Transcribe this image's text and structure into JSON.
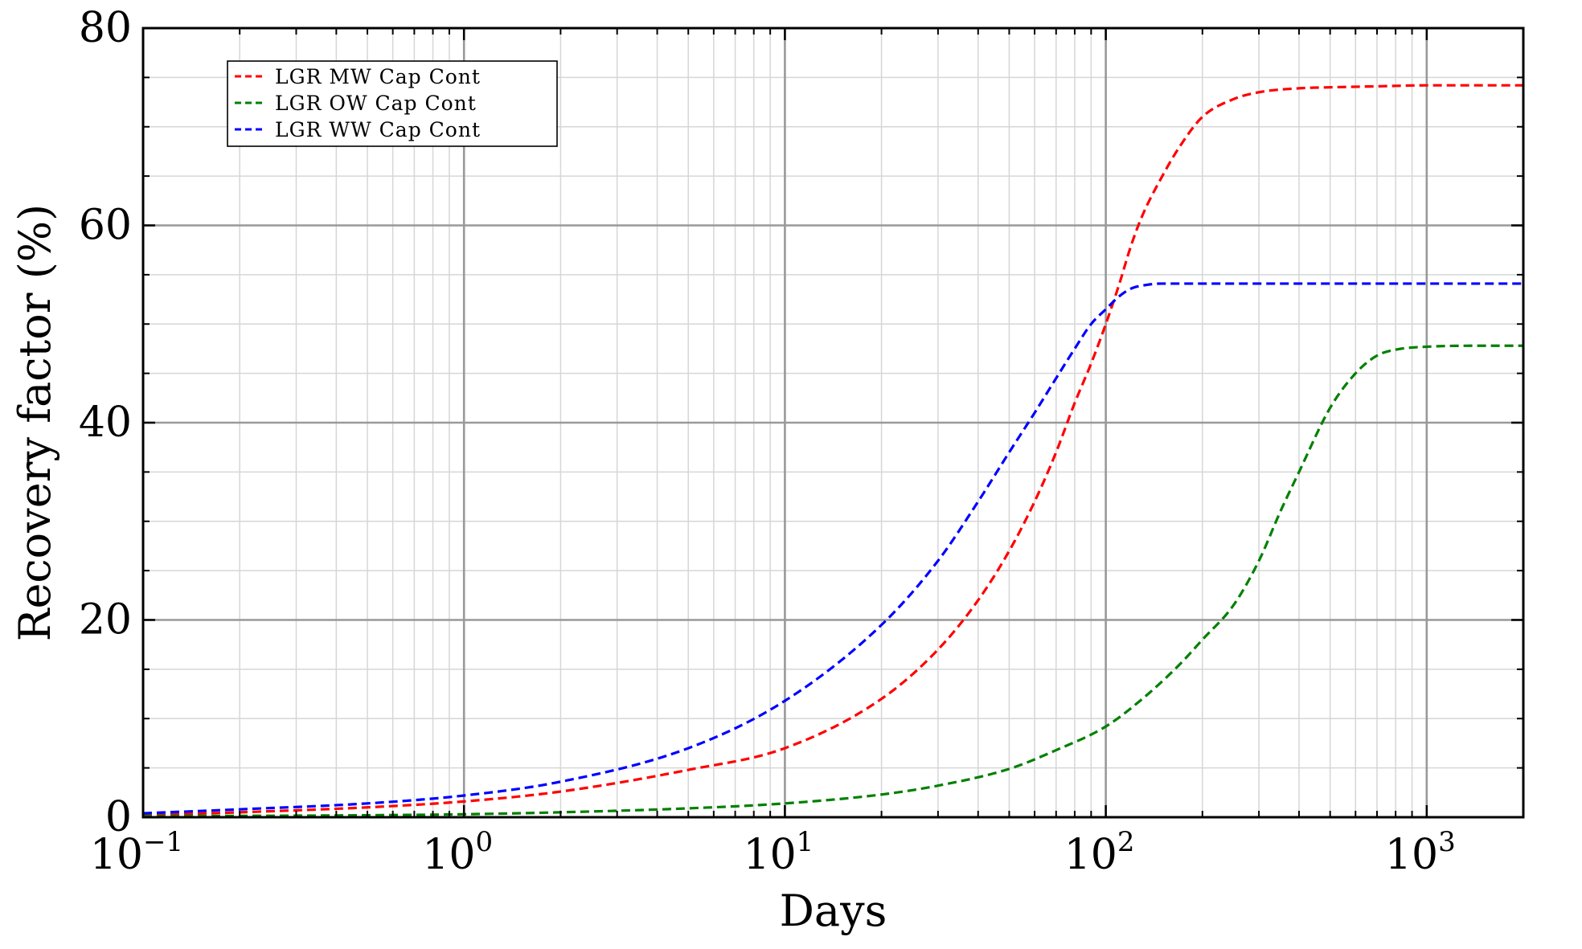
{
  "chart_data": {
    "type": "line",
    "xlabel": "Days",
    "ylabel": "Recovery factor (%)",
    "xscale": "log",
    "xlim": [
      0.1,
      2000
    ],
    "ylim": [
      0,
      80
    ],
    "x_ticks": [
      {
        "value": 0.1,
        "base": "10",
        "exp": "−1"
      },
      {
        "value": 1,
        "base": "10",
        "exp": "0"
      },
      {
        "value": 10,
        "base": "10",
        "exp": "1"
      },
      {
        "value": 100,
        "base": "10",
        "exp": "2"
      },
      {
        "value": 1000,
        "base": "10",
        "exp": "3"
      }
    ],
    "y_ticks": [
      {
        "value": 0,
        "label": "0"
      },
      {
        "value": 20,
        "label": "20"
      },
      {
        "value": 40,
        "label": "40"
      },
      {
        "value": 60,
        "label": "60"
      },
      {
        "value": 80,
        "label": "80"
      }
    ],
    "grid": true,
    "legend": "top-left",
    "series": [
      {
        "name": "LGR MW Cap Cont",
        "color": "#ff0000",
        "style": "dashed",
        "x": [
          0.1,
          0.2,
          0.5,
          1,
          2,
          5,
          10,
          20,
          30,
          40,
          50,
          60,
          70,
          80,
          90,
          100,
          110,
          120,
          130,
          150,
          170,
          200,
          250,
          300,
          400,
          500,
          700,
          1000,
          1500,
          2000
        ],
        "y": [
          0.2,
          0.5,
          1.0,
          1.6,
          2.6,
          4.8,
          7.0,
          12.0,
          17.0,
          22.0,
          27.0,
          32.0,
          37.0,
          42.0,
          46.0,
          50.0,
          54.0,
          58.0,
          61.0,
          65.0,
          68.0,
          71.0,
          72.8,
          73.5,
          73.9,
          74.0,
          74.1,
          74.2,
          74.2,
          74.2
        ]
      },
      {
        "name": "LGR OW Cap Cont",
        "color": "#008000",
        "style": "dashed",
        "x": [
          0.1,
          0.5,
          1,
          2,
          5,
          10,
          20,
          30,
          50,
          70,
          100,
          130,
          170,
          200,
          250,
          300,
          350,
          400,
          500,
          600,
          700,
          800,
          1000,
          1500,
          2000
        ],
        "y": [
          0.1,
          0.2,
          0.3,
          0.5,
          0.9,
          1.4,
          2.3,
          3.2,
          4.9,
          6.8,
          9.2,
          12.0,
          15.5,
          18.0,
          21.5,
          26.0,
          31.0,
          35.0,
          41.5,
          45.0,
          46.8,
          47.4,
          47.7,
          47.8,
          47.8
        ]
      },
      {
        "name": "LGR WW Cap Cont",
        "color": "#0000ff",
        "style": "dashed",
        "x": [
          0.1,
          0.2,
          0.5,
          1,
          2,
          5,
          10,
          20,
          30,
          40,
          50,
          60,
          70,
          80,
          90,
          100,
          110,
          120,
          130,
          150,
          200,
          300,
          500,
          1000,
          2000
        ],
        "y": [
          0.4,
          0.8,
          1.4,
          2.2,
          3.6,
          7.0,
          11.8,
          19.5,
          26.0,
          32.0,
          37.0,
          41.0,
          44.5,
          47.5,
          50.0,
          51.5,
          52.8,
          53.6,
          53.9,
          54.1,
          54.1,
          54.1,
          54.1,
          54.1,
          54.1
        ]
      }
    ]
  }
}
